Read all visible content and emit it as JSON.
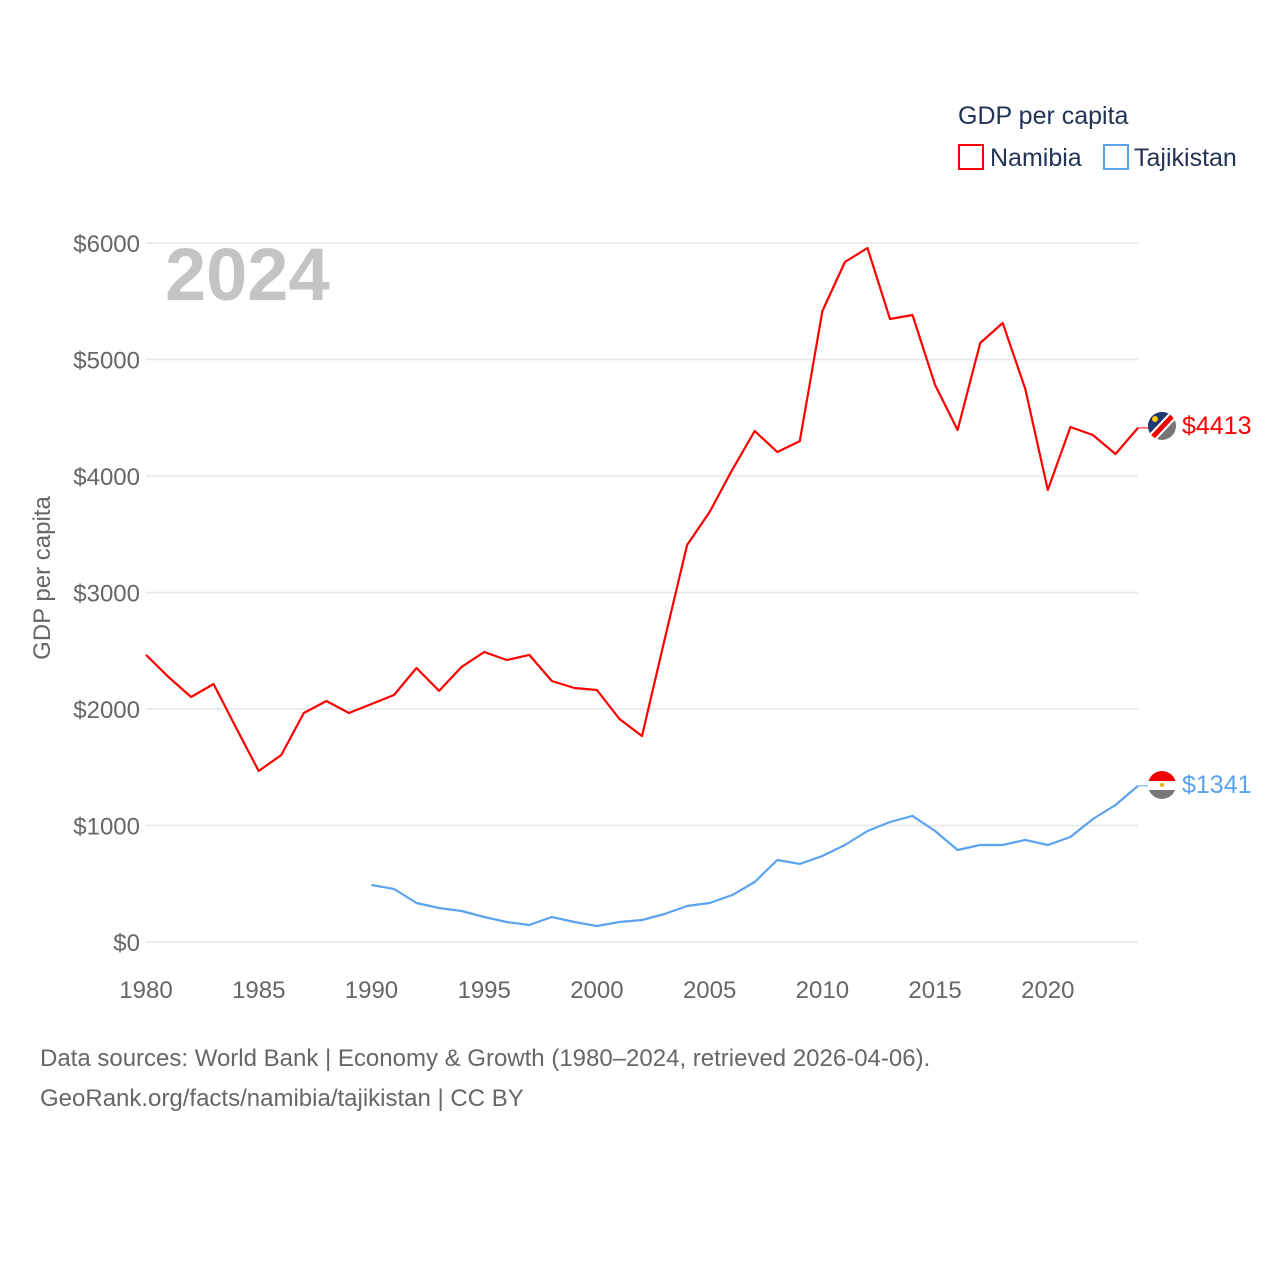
{
  "chart_data": {
    "type": "line",
    "title": "",
    "watermark_year": "2024",
    "ylabel": "GDP per capita",
    "xlabel": "",
    "ylim": [
      0,
      6000
    ],
    "xlim": [
      1980,
      2024
    ],
    "yticks": [
      0,
      1000,
      2000,
      3000,
      4000,
      5000,
      6000
    ],
    "ytick_labels": [
      "$0",
      "$1000",
      "$2000",
      "$3000",
      "$4000",
      "$5000",
      "$6000"
    ],
    "xticks": [
      1980,
      1985,
      1990,
      1995,
      2000,
      2005,
      2010,
      2015,
      2020
    ],
    "xtick_labels": [
      "1980",
      "1985",
      "1990",
      "1995",
      "2000",
      "2005",
      "2010",
      "2015",
      "2020"
    ],
    "grid": true,
    "legend": {
      "title": "GDP per capita",
      "position": "top-right"
    },
    "series": [
      {
        "name": "Namibia",
        "color": "#ff0000",
        "end_label": "$4413",
        "x_start": 1980,
        "values": [
          2464,
          2275,
          2103,
          2215,
          1837,
          1468,
          1605,
          1966,
          2069,
          1966,
          2043,
          2120,
          2352,
          2155,
          2361,
          2489,
          2421,
          2464,
          2240,
          2180,
          2163,
          1914,
          1768,
          2592,
          3408,
          3691,
          4052,
          4386,
          4206,
          4300,
          5416,
          5837,
          5957,
          5348,
          5382,
          4781,
          4395,
          5142,
          5313,
          4747,
          3880,
          4421,
          4352,
          4189,
          4413
        ]
      },
      {
        "name": "Tajikistan",
        "color": "#5ba3ee",
        "end_label": "$1341",
        "x_start": 1990,
        "values": [
          489,
          455,
          335,
          292,
          266,
          215,
          172,
          146,
          215,
          172,
          137,
          172,
          189,
          240,
          309,
          335,
          403,
          515,
          704,
          670,
          738,
          833,
          953,
          1030,
          1082,
          953,
          790,
          833,
          833,
          876,
          833,
          901,
          1056,
          1176,
          1341
        ]
      }
    ]
  },
  "footer": {
    "line1": "Data sources: World Bank | Economy & Growth (1980–2024, retrieved 2026-04-06).",
    "line2": "GeoRank.org/facts/namibia/tajikistan | CC BY"
  }
}
